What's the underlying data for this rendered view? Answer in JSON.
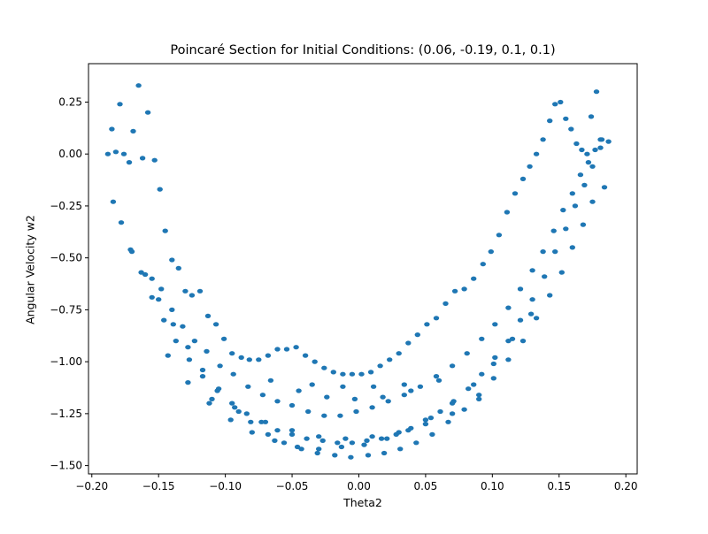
{
  "chart_data": {
    "type": "scatter",
    "title": "Poincaré Section for Initial Conditions: (0.06, -0.19, 0.1, 0.1)",
    "xlabel": "Theta2",
    "ylabel": "Angular Velocity w2",
    "xlim": [
      -0.2025,
      0.2085
    ],
    "ylim": [
      -1.54,
      0.435
    ],
    "xticks": [
      -0.2,
      -0.15,
      -0.1,
      -0.05,
      0.0,
      0.05,
      0.1,
      0.15,
      0.2
    ],
    "xtick_labels": [
      "−0.20",
      "−0.15",
      "−0.10",
      "−0.05",
      "0.00",
      "0.05",
      "0.10",
      "0.15",
      "0.20"
    ],
    "yticks": [
      -1.5,
      -1.25,
      -1.0,
      -0.75,
      -0.5,
      -0.25,
      0.0,
      0.25
    ],
    "ytick_labels": [
      "−1.50",
      "−1.25",
      "−1.00",
      "−0.75",
      "−0.50",
      "−0.25",
      "0.00",
      "0.25"
    ],
    "grid": false,
    "legend": "none",
    "color": "#1f77b4",
    "series": [
      {
        "x": [
          -0.188,
          -0.185,
          -0.182,
          -0.179,
          -0.176,
          -0.172,
          -0.169,
          -0.165,
          -0.162,
          -0.158,
          -0.153,
          -0.149,
          -0.145,
          -0.14,
          -0.135,
          -0.13,
          -0.125,
          -0.119,
          -0.113,
          -0.107,
          -0.101,
          -0.095,
          -0.088,
          -0.082,
          -0.075,
          -0.068,
          -0.061,
          -0.054,
          -0.047,
          -0.04,
          -0.033,
          -0.026,
          -0.019,
          -0.012,
          -0.005,
          0.002,
          0.009,
          0.016,
          0.023,
          0.03,
          0.037,
          0.044,
          0.051,
          0.058,
          0.065,
          0.072,
          0.079,
          0.086,
          0.093,
          0.099,
          0.105,
          0.111,
          0.117,
          0.123,
          0.128,
          0.133,
          0.138,
          0.143,
          0.147,
          0.151,
          0.155,
          0.159,
          0.163,
          0.167,
          0.171,
          0.174,
          0.178,
          0.181,
          0.184,
          0.187,
          -0.155,
          -0.148,
          -0.14,
          -0.132,
          -0.123,
          -0.114,
          -0.104,
          -0.094,
          -0.083,
          -0.072,
          -0.061,
          -0.05,
          -0.038,
          -0.026,
          -0.014,
          -0.002,
          0.01,
          0.022,
          0.034,
          0.046,
          0.058,
          0.07,
          0.081,
          0.092,
          0.102,
          0.112,
          0.121,
          0.13,
          0.138,
          0.146,
          0.153,
          0.16,
          0.166,
          0.172,
          0.177,
          0.182,
          -0.184,
          -0.178,
          -0.171,
          -0.163,
          -0.155,
          -0.146,
          -0.137,
          -0.127,
          -0.117,
          -0.106,
          -0.095,
          -0.084,
          -0.073,
          -0.061,
          -0.05,
          -0.039,
          -0.027,
          -0.016,
          -0.005,
          0.006,
          0.017,
          0.028,
          0.039,
          0.05,
          0.061,
          0.071,
          0.082,
          0.092,
          0.102,
          0.112,
          0.121,
          0.13,
          0.139,
          0.147,
          0.155,
          0.162,
          0.169,
          0.175,
          0.181,
          -0.17,
          -0.16,
          -0.15,
          -0.139,
          -0.128,
          -0.117,
          -0.105,
          -0.093,
          -0.081,
          -0.068,
          -0.056,
          -0.043,
          -0.031,
          -0.018,
          -0.006,
          0.007,
          0.019,
          0.031,
          0.043,
          0.055,
          0.067,
          0.079,
          0.09,
          0.101,
          0.112,
          0.123,
          0.133,
          0.143,
          0.152,
          0.16,
          0.168,
          0.175,
          -0.143,
          -0.128,
          -0.112,
          -0.096,
          -0.08,
          -0.063,
          -0.046,
          -0.03,
          -0.013,
          0.004,
          0.021,
          0.037,
          0.054,
          0.07,
          0.086,
          0.101,
          0.115,
          0.129,
          -0.11,
          -0.09,
          -0.07,
          -0.05,
          -0.03,
          -0.01,
          0.01,
          0.03,
          0.05,
          0.07,
          0.09,
          -0.066,
          -0.045,
          -0.024,
          -0.003,
          0.018,
          0.039,
          0.06,
          -0.035,
          -0.012,
          0.011,
          0.034
        ],
        "y": [
          0.0,
          0.12,
          0.01,
          0.24,
          0.0,
          -0.04,
          0.11,
          0.33,
          -0.02,
          0.2,
          -0.03,
          -0.17,
          -0.37,
          -0.51,
          -0.55,
          -0.66,
          -0.68,
          -0.66,
          -0.78,
          -0.82,
          -0.89,
          -0.96,
          -0.98,
          -0.99,
          -0.99,
          -0.97,
          -0.94,
          -0.94,
          -0.93,
          -0.97,
          -1.0,
          -1.03,
          -1.05,
          -1.06,
          -1.06,
          -1.06,
          -1.05,
          -1.02,
          -0.99,
          -0.96,
          -0.91,
          -0.87,
          -0.82,
          -0.79,
          -0.72,
          -0.66,
          -0.65,
          -0.6,
          -0.53,
          -0.47,
          -0.39,
          -0.28,
          -0.19,
          -0.12,
          -0.06,
          0.0,
          0.07,
          0.16,
          0.24,
          0.25,
          0.17,
          0.12,
          0.05,
          0.02,
          0.0,
          0.18,
          0.3,
          0.07,
          -0.16,
          0.06,
          -0.6,
          -0.65,
          -0.75,
          -0.83,
          -0.9,
          -0.95,
          -1.02,
          -1.06,
          -1.12,
          -1.16,
          -1.19,
          -1.21,
          -1.24,
          -1.26,
          -1.26,
          -1.24,
          -1.22,
          -1.19,
          -1.16,
          -1.12,
          -1.07,
          -1.02,
          -0.96,
          -0.89,
          -0.82,
          -0.74,
          -0.65,
          -0.56,
          -0.47,
          -0.37,
          -0.27,
          -0.19,
          -0.1,
          -0.04,
          0.02,
          0.07,
          -0.23,
          -0.33,
          -0.46,
          -0.57,
          -0.69,
          -0.8,
          -0.9,
          -0.99,
          -1.07,
          -1.14,
          -1.2,
          -1.25,
          -1.29,
          -1.33,
          -1.35,
          -1.37,
          -1.38,
          -1.39,
          -1.39,
          -1.38,
          -1.37,
          -1.35,
          -1.32,
          -1.28,
          -1.24,
          -1.19,
          -1.13,
          -1.06,
          -0.98,
          -0.9,
          -0.8,
          -0.7,
          -0.59,
          -0.47,
          -0.36,
          -0.25,
          -0.15,
          -0.06,
          0.03,
          -0.47,
          -0.58,
          -0.7,
          -0.82,
          -0.93,
          -1.04,
          -1.13,
          -1.22,
          -1.29,
          -1.35,
          -1.39,
          -1.42,
          -1.44,
          -1.45,
          -1.46,
          -1.45,
          -1.44,
          -1.42,
          -1.39,
          -1.35,
          -1.29,
          -1.23,
          -1.16,
          -1.08,
          -0.99,
          -0.9,
          -0.79,
          -0.68,
          -0.57,
          -0.45,
          -0.34,
          -0.23,
          -0.97,
          -1.1,
          -1.2,
          -1.28,
          -1.34,
          -1.38,
          -1.41,
          -1.42,
          -1.41,
          -1.4,
          -1.37,
          -1.33,
          -1.27,
          -1.2,
          -1.11,
          -1.01,
          -0.89,
          -0.77,
          -1.18,
          -1.24,
          -1.29,
          -1.33,
          -1.36,
          -1.37,
          -1.36,
          -1.34,
          -1.3,
          -1.25,
          -1.18,
          -1.09,
          -1.14,
          -1.17,
          -1.18,
          -1.17,
          -1.14,
          -1.09,
          -1.11,
          -1.12,
          -1.12,
          -1.11
        ]
      }
    ]
  }
}
